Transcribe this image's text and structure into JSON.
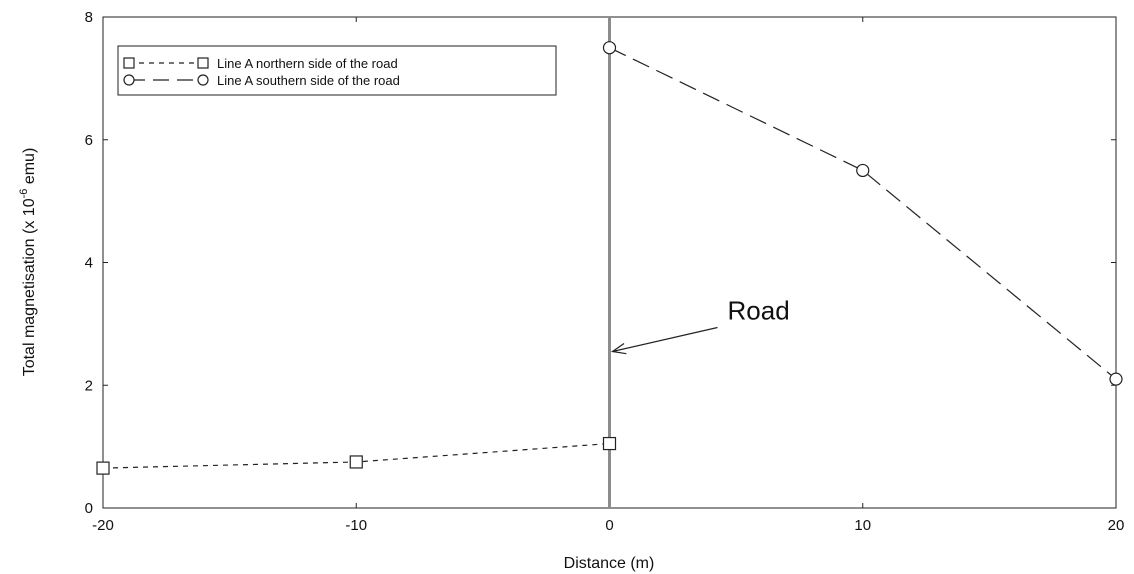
{
  "chart_data": {
    "type": "line",
    "title": "",
    "xlabel": "Distance (m)",
    "ylabel": "Total magnetisation (x 10",
    "ylabel_sup": "-6",
    "ylabel_tail": " emu)",
    "xlim": [
      -20,
      20
    ],
    "ylim": [
      0,
      8
    ],
    "xticks": [
      -20,
      -10,
      0,
      10,
      20
    ],
    "yticks": [
      0,
      2,
      4,
      6,
      8
    ],
    "grid": false,
    "legend_position": "top-left",
    "series": [
      {
        "name": "Line A northern side of the road",
        "marker": "square",
        "line_style": "short-dash",
        "x": [
          -20,
          -10,
          0
        ],
        "y": [
          0.65,
          0.75,
          1.05
        ]
      },
      {
        "name": "Line A southern side of the road",
        "marker": "circle",
        "line_style": "long-dash",
        "x": [
          0,
          10,
          20
        ],
        "y": [
          7.5,
          5.5,
          2.1
        ]
      }
    ],
    "reference_line": {
      "x": 0,
      "color": "#8c8c8c"
    },
    "annotation": {
      "text": "Road",
      "x": 0,
      "y": 2.55
    }
  }
}
